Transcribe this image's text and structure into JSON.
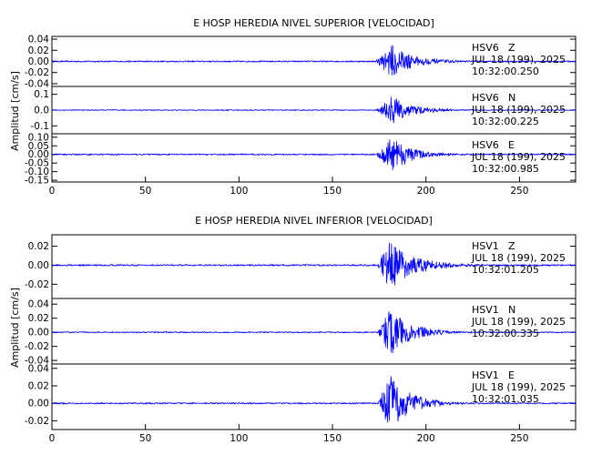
{
  "chart_data": [
    {
      "type": "line",
      "title": "E HOSP HEREDIA NIVEL SUPERIOR [VELOCIDAD]",
      "ylabel": "Amplitud [cm/s]",
      "xlim": [
        0,
        280
      ],
      "x_ticks": [
        "0",
        "50",
        "100",
        "150",
        "200",
        "250"
      ],
      "line_color": "#0000ff",
      "traces": [
        {
          "station": "HSV6",
          "component": "Z",
          "date": "JUL 18 (199), 2025",
          "time": "10:32:00.250",
          "ylim": [
            -0.045,
            0.045
          ],
          "yticks": [
            0.04,
            0.02,
            0.0,
            -0.02,
            -0.04
          ],
          "ytick_labels": [
            "0.04",
            "0.02",
            "0.00",
            "-0.02",
            "-0.04"
          ],
          "noise_amp": 0.0012,
          "onset": 173,
          "peak_time": 182,
          "peak_amp": 0.03,
          "decay": 11
        },
        {
          "station": "HSV6",
          "component": "N",
          "date": "JUL 18 (199), 2025",
          "time": "10:32:00.225",
          "ylim": [
            -0.15,
            0.15
          ],
          "yticks": [
            0.1,
            0.0,
            -0.1
          ],
          "ytick_labels": [
            "0.1",
            "0.0",
            "-0.1"
          ],
          "noise_amp": 0.003,
          "onset": 173,
          "peak_time": 182,
          "peak_amp": 0.09,
          "decay": 11
        },
        {
          "station": "HSV6",
          "component": "E",
          "date": "JUL 18 (199), 2025",
          "time": "10:32:00.985",
          "ylim": [
            -0.16,
            0.12
          ],
          "yticks": [
            0.1,
            0.05,
            0.0,
            -0.05,
            -0.1,
            -0.15
          ],
          "ytick_labels": [
            "0.10",
            "0.05",
            "0.00",
            "-0.05",
            "-0.10",
            "-0.15"
          ],
          "noise_amp": 0.004,
          "onset": 173,
          "peak_time": 182,
          "peak_amp": 0.1,
          "decay": 11
        }
      ]
    },
    {
      "type": "line",
      "title": "E HOSP HEREDIA NIVEL INFERIOR [VELOCIDAD]",
      "ylabel": "Amplitud [cm/s]",
      "xlim": [
        0,
        280
      ],
      "x_ticks": [
        "0",
        "50",
        "100",
        "150",
        "200",
        "250"
      ],
      "line_color": "#0000ff",
      "traces": [
        {
          "station": "HSV1",
          "component": "Z",
          "date": "JUL 18 (199), 2025",
          "time": "10:32:01.205",
          "ylim": [
            -0.035,
            0.032
          ],
          "yticks": [
            0.02,
            0.0,
            -0.02
          ],
          "ytick_labels": [
            "0.02",
            "0.00",
            "-0.02"
          ],
          "noise_amp": 0.0008,
          "onset": 174,
          "peak_time": 181,
          "peak_amp": 0.028,
          "decay": 12
        },
        {
          "station": "HSV1",
          "component": "N",
          "date": "JUL 18 (199), 2025",
          "time": "10:32:00.335",
          "ylim": [
            -0.045,
            0.048
          ],
          "yticks": [
            0.04,
            0.02,
            0.0,
            -0.02,
            -0.04
          ],
          "ytick_labels": [
            "0.04",
            "0.02",
            "0.00",
            "-0.02",
            "-0.04"
          ],
          "noise_amp": 0.0008,
          "onset": 174,
          "peak_time": 181,
          "peak_amp": 0.035,
          "decay": 11
        },
        {
          "station": "HSV1",
          "component": "E",
          "date": "JUL 18 (199), 2025",
          "time": "10:32:01.035",
          "ylim": [
            -0.03,
            0.045
          ],
          "yticks": [
            0.04,
            0.02,
            0.0,
            -0.02
          ],
          "ytick_labels": [
            "0.04",
            "0.02",
            "0.00",
            "-0.02"
          ],
          "noise_amp": 0.0008,
          "onset": 174,
          "peak_time": 181,
          "peak_amp": 0.032,
          "decay": 11
        }
      ]
    }
  ]
}
